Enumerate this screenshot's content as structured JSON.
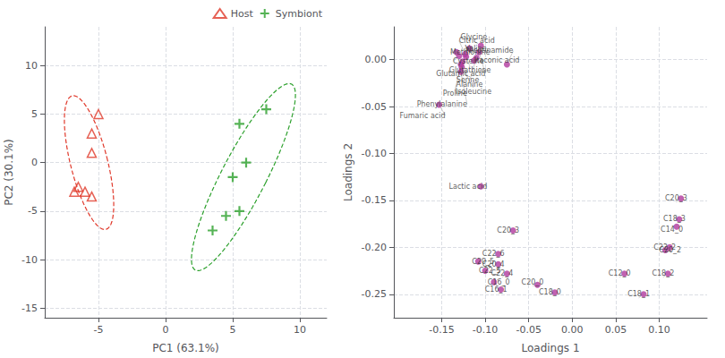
{
  "chart_data": [
    {
      "type": "scatter",
      "xlabel": "PC1 (63.1%)",
      "ylabel": "PC2 (30.1%)",
      "xlim": [
        -9,
        12
      ],
      "ylim": [
        -16,
        14
      ],
      "xticks": [
        -5,
        0,
        5,
        10
      ],
      "yticks": [
        -15,
        -10,
        -5,
        0,
        5,
        10
      ],
      "grid": true,
      "legend": "upper right",
      "series": [
        {
          "name": "Host",
          "color": "#e0392b",
          "marker": "triangle-open",
          "line_style": "dashed",
          "values": [
            [
              -5.5,
              3.0
            ],
            [
              -5.5,
              1.0
            ],
            [
              -5.0,
              5.0
            ],
            [
              -6.5,
              -2.5
            ],
            [
              -6.0,
              -3.0
            ],
            [
              -6.8,
              -3.0
            ],
            [
              -5.5,
              -3.5
            ]
          ],
          "ellipse": {
            "cx": -5.7,
            "cy": 0.0,
            "width": 2.8,
            "height": 14.0,
            "angle": 10
          }
        },
        {
          "name": "Symbiont",
          "color": "#2ca02c",
          "marker": "plus",
          "line_style": "dashed",
          "values": [
            [
              3.5,
              -7.0
            ],
            [
              4.5,
              -5.5
            ],
            [
              5.5,
              -5.0
            ],
            [
              5.0,
              -1.5
            ],
            [
              6.0,
              0.0
            ],
            [
              5.5,
              4.0
            ],
            [
              7.5,
              5.5
            ]
          ],
          "ellipse": {
            "cx": 5.8,
            "cy": -1.5,
            "width": 3.5,
            "height": 20.5,
            "angle": -20
          }
        }
      ]
    },
    {
      "type": "scatter",
      "xlabel": "Loadings 1",
      "ylabel": "Loadings 2",
      "xlim": [
        -0.205,
        0.155
      ],
      "ylim": [
        -0.275,
        0.035
      ],
      "xticks": [
        -0.15,
        {
          "value": -0.1,
          "label": "-0.10"
        },
        -0.05,
        {
          "value": 0.0,
          "label": "0.00"
        },
        0.05,
        {
          "value": 0.1,
          "label": "0.10"
        }
      ],
      "yticks": [
        -0.25,
        {
          "value": -0.2,
          "label": "-0.20"
        },
        -0.15,
        {
          "value": -0.1,
          "label": "-0.10"
        },
        -0.05,
        {
          "value": 0.0,
          "label": "0.00"
        }
      ],
      "grid": true,
      "series": [
        {
          "color": "#b03a9e",
          "values": [
            [
              -0.118,
              0.012
            ],
            [
              -0.105,
              0.015
            ],
            [
              -0.133,
              0.008
            ],
            [
              -0.123,
              0.006
            ],
            [
              -0.107,
              0.008
            ],
            [
              -0.13,
              0.004
            ],
            [
              -0.122,
              0.003
            ],
            [
              -0.11,
              0.002
            ],
            [
              -0.126,
              -0.002
            ],
            [
              -0.113,
              -0.001
            ],
            [
              -0.128,
              -0.005
            ],
            [
              -0.075,
              -0.005
            ],
            [
              -0.127,
              -0.008
            ],
            [
              -0.128,
              -0.013
            ],
            [
              -0.153,
              -0.048
            ],
            [
              -0.105,
              -0.135
            ],
            [
              -0.068,
              -0.182
            ],
            [
              0.125,
              -0.148
            ],
            [
              0.123,
              -0.17
            ],
            [
              0.12,
              -0.178
            ],
            [
              -0.085,
              -0.207
            ],
            [
              0.112,
              -0.2
            ],
            [
              -0.108,
              -0.215
            ],
            [
              -0.085,
              -0.218
            ],
            [
              0.107,
              -0.203
            ],
            [
              -0.1,
              -0.225
            ],
            [
              -0.075,
              -0.228
            ],
            [
              0.06,
              -0.228
            ],
            [
              0.11,
              -0.228
            ],
            [
              -0.09,
              -0.237
            ],
            [
              -0.04,
              -0.24
            ],
            [
              -0.02,
              -0.248
            ],
            [
              0.082,
              -0.25
            ],
            [
              -0.082,
              -0.245
            ]
          ],
          "annotations": [
            "Valine",
            "Glycine",
            "Methionine",
            "Citric acid",
            "Glutamic acid",
            "Cysteine",
            "Glutathione",
            "Alanine",
            "Serine",
            "Itaconic acid",
            "Proline",
            "Nicotinamide",
            "Isoleucine",
            "Phenylalanine",
            "Fumaric acid",
            "Lactic acid",
            "C20_3",
            "C20_3",
            "C18_3",
            "C14_0",
            "C22_6",
            "C22_2",
            "C20_5",
            "C20_4",
            "C20_2",
            "C22_5",
            "C22_4",
            "C12_0",
            "C18_2",
            "C16_0",
            "C20_0",
            "C18_0",
            "C18_1",
            "C16_1"
          ]
        }
      ]
    }
  ]
}
